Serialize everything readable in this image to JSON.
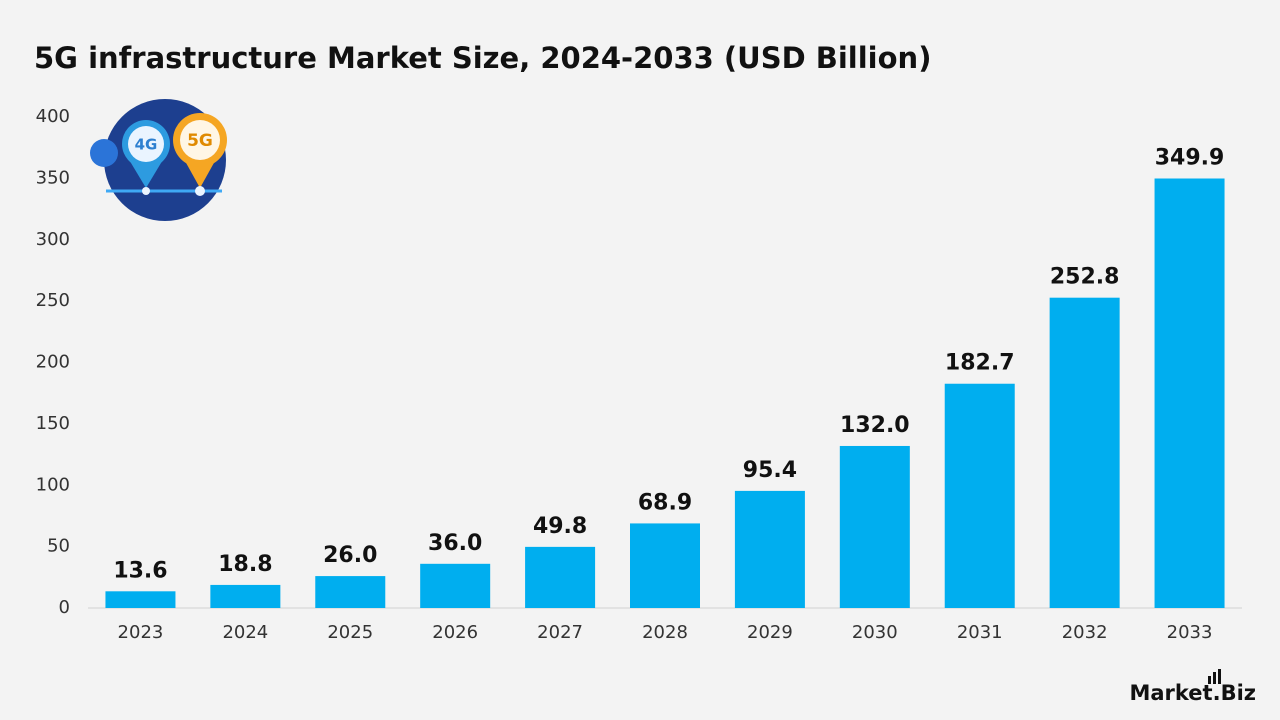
{
  "chart_data": {
    "type": "bar",
    "title": "5G infrastructure Market Size, 2024-2033 (USD Billion)",
    "categories": [
      "2023",
      "2024",
      "2025",
      "2026",
      "2027",
      "2028",
      "2029",
      "2030",
      "2031",
      "2032",
      "2033"
    ],
    "values": [
      13.6,
      18.8,
      26.0,
      36.0,
      49.8,
      68.9,
      95.4,
      132.0,
      182.7,
      252.8,
      349.9
    ],
    "value_labels": [
      "13.6",
      "18.8",
      "26.0",
      "36.0",
      "49.8",
      "68.9",
      "95.4",
      "132.0",
      "182.7",
      "252.8",
      "349.9"
    ],
    "color": "#00aeef",
    "ylim": [
      0,
      400
    ],
    "yticks": [
      0,
      50,
      100,
      150,
      200,
      250,
      300,
      350,
      400
    ],
    "grid": false,
    "icon_labels": [
      "4G",
      "5G"
    ],
    "logo_text": "Market.Biz"
  }
}
